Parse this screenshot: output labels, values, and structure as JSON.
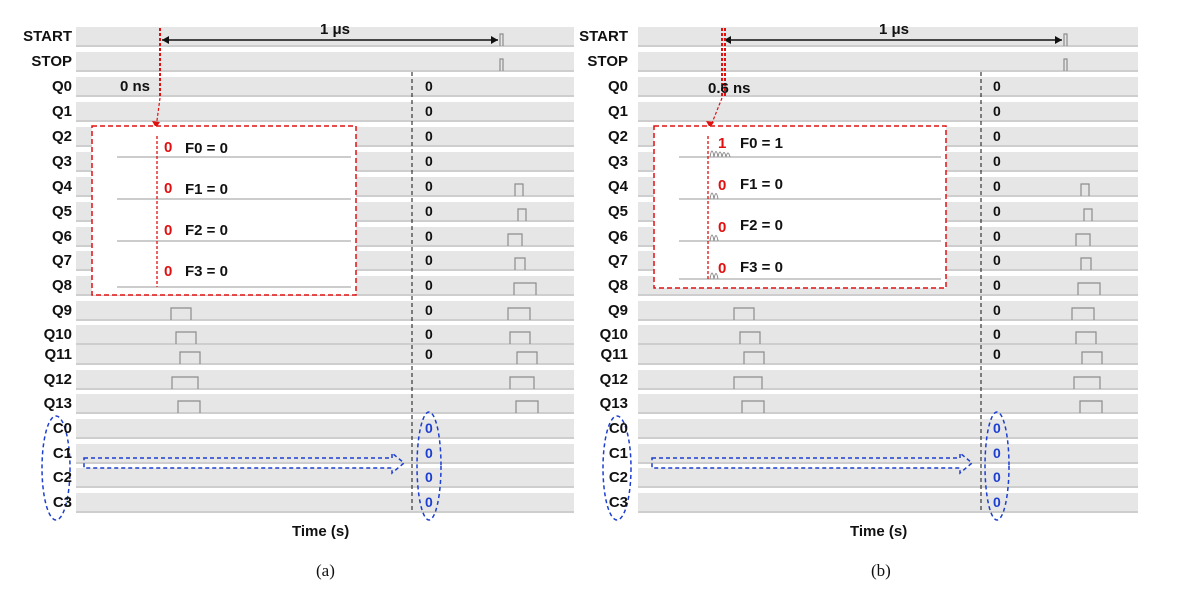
{
  "signal_labels": [
    "START",
    "STOP",
    "Q0",
    "Q1",
    "Q2",
    "Q3",
    "Q4",
    "Q5",
    "Q6",
    "Q7",
    "Q8",
    "Q9",
    "Q10",
    "Q11",
    "Q12",
    "Q13",
    "C0",
    "C1",
    "C2",
    "C3"
  ],
  "panel_a": {
    "caption": "(a)",
    "interval_label": "1 μs",
    "delay_label": "0 ns",
    "time_axis_label": "Time (s)",
    "output_values": [
      "0",
      "0",
      "0",
      "0",
      "0",
      "0",
      "0",
      "0",
      "0",
      "0",
      "0",
      "0"
    ],
    "counter_values": [
      "0",
      "0",
      "0",
      "0"
    ],
    "fine_bits": [
      {
        "bit": "0",
        "eq": "F0 = 0"
      },
      {
        "bit": "0",
        "eq": "F1 = 0"
      },
      {
        "bit": "0",
        "eq": "F2 = 0"
      },
      {
        "bit": "0",
        "eq": "F3 = 0"
      }
    ]
  },
  "panel_b": {
    "caption": "(b)",
    "interval_label": "1 μs",
    "delay_label": "0.6 ns",
    "time_axis_label": "Time (s)",
    "output_values": [
      "0",
      "0",
      "0",
      "0",
      "0",
      "0",
      "0",
      "0",
      "0",
      "0",
      "0",
      "0"
    ],
    "counter_values": [
      "0",
      "0",
      "0",
      "0"
    ],
    "fine_bits": [
      {
        "bit": "1",
        "eq": "F0 = 1"
      },
      {
        "bit": "0",
        "eq": "F1 = 0"
      },
      {
        "bit": "0",
        "eq": "F2 = 0"
      },
      {
        "bit": "0",
        "eq": "F3 = 0"
      }
    ]
  },
  "colors": {
    "highlight_red": "#e01010",
    "counter_blue": "#1d3fd0",
    "row_bg": "#e6e6e6",
    "trace": "#8c8c8c"
  }
}
